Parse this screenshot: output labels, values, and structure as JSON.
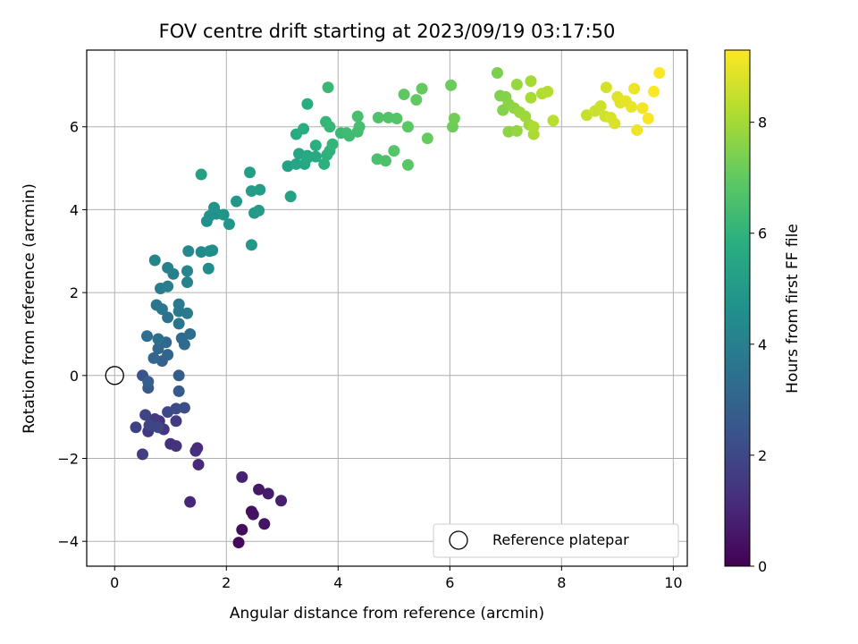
{
  "chart_data": {
    "type": "scatter",
    "title": "FOV centre drift starting at 2023/09/19 03:17:50",
    "xlabel": "Angular distance from reference (arcmin)",
    "ylabel": "Rotation from reference (arcmin)",
    "xlim": [
      -0.5,
      10.25
    ],
    "ylim": [
      -4.6,
      7.85
    ],
    "xticks": [
      0,
      2,
      4,
      6,
      8,
      10
    ],
    "yticks": [
      -4,
      -2,
      0,
      2,
      4,
      6
    ],
    "grid": true,
    "colorbar": {
      "label": "Hours from first FF file",
      "colormap": "viridis",
      "range": [
        0,
        9.3
      ],
      "ticks": [
        0,
        2,
        4,
        6,
        8
      ]
    },
    "legend": {
      "position": "lower-right",
      "entries": [
        "Reference platepar"
      ]
    },
    "reference_point": {
      "x": 0,
      "y": 0,
      "label": "Reference platepar"
    },
    "points": [
      [
        2.22,
        -4.03,
        0.2
      ],
      [
        2.28,
        -3.72,
        0.3
      ],
      [
        2.45,
        -3.28,
        0.4
      ],
      [
        2.48,
        -3.35,
        0.45
      ],
      [
        2.68,
        -3.58,
        0.5
      ],
      [
        2.58,
        -2.75,
        0.6
      ],
      [
        2.75,
        -2.85,
        0.7
      ],
      [
        2.98,
        -3.02,
        0.8
      ],
      [
        2.28,
        -2.45,
        0.9
      ],
      [
        1.35,
        -3.05,
        1.0
      ],
      [
        1.5,
        -2.15,
        1.1
      ],
      [
        1.48,
        -1.75,
        1.2
      ],
      [
        1.45,
        -1.82,
        1.25
      ],
      [
        1.0,
        -1.65,
        1.3
      ],
      [
        1.1,
        -1.7,
        1.35
      ],
      [
        0.8,
        -1.1,
        1.4
      ],
      [
        0.88,
        -1.3,
        1.45
      ],
      [
        0.72,
        -1.05,
        1.5
      ],
      [
        0.6,
        -1.35,
        1.55
      ],
      [
        1.1,
        -1.1,
        1.6
      ],
      [
        0.5,
        -1.9,
        1.7
      ],
      [
        0.38,
        -1.25,
        1.8
      ],
      [
        0.55,
        -0.95,
        1.85
      ],
      [
        0.62,
        -1.2,
        1.9
      ],
      [
        0.78,
        -1.25,
        1.95
      ],
      [
        0.95,
        -0.88,
        2.0
      ],
      [
        1.1,
        -0.8,
        2.1
      ],
      [
        1.25,
        -0.78,
        2.2
      ],
      [
        0.5,
        0.0,
        2.4
      ],
      [
        0.6,
        -0.3,
        2.5
      ],
      [
        1.15,
        -0.38,
        2.6
      ],
      [
        1.15,
        0.0,
        2.7
      ],
      [
        0.6,
        -0.15,
        2.8
      ],
      [
        0.85,
        0.35,
        2.9
      ],
      [
        0.95,
        0.5,
        3.0
      ],
      [
        0.7,
        0.42,
        3.05
      ],
      [
        0.78,
        0.65,
        3.1
      ],
      [
        0.92,
        0.8,
        3.15
      ],
      [
        1.25,
        0.75,
        3.2
      ],
      [
        1.2,
        0.9,
        3.25
      ],
      [
        1.35,
        1.0,
        3.3
      ],
      [
        0.58,
        0.95,
        3.35
      ],
      [
        0.78,
        0.88,
        3.4
      ],
      [
        0.95,
        1.4,
        3.5
      ],
      [
        1.15,
        1.25,
        3.55
      ],
      [
        0.85,
        1.6,
        3.6
      ],
      [
        0.75,
        1.7,
        3.65
      ],
      [
        1.15,
        1.55,
        3.7
      ],
      [
        1.15,
        1.72,
        3.75
      ],
      [
        1.3,
        1.5,
        3.8
      ],
      [
        0.82,
        2.1,
        3.9
      ],
      [
        0.95,
        2.15,
        3.95
      ],
      [
        1.05,
        2.45,
        4.0
      ],
      [
        0.95,
        2.6,
        4.05
      ],
      [
        1.3,
        2.25,
        4.1
      ],
      [
        1.3,
        2.52,
        4.15
      ],
      [
        0.72,
        2.78,
        4.2
      ],
      [
        1.32,
        3.0,
        4.3
      ],
      [
        1.55,
        2.98,
        4.4
      ],
      [
        1.68,
        2.58,
        4.45
      ],
      [
        1.7,
        3.0,
        4.5
      ],
      [
        1.75,
        3.02,
        4.55
      ],
      [
        1.65,
        3.72,
        4.6
      ],
      [
        1.7,
        3.85,
        4.65
      ],
      [
        1.82,
        3.9,
        4.7
      ],
      [
        1.78,
        4.05,
        4.75
      ],
      [
        1.95,
        3.88,
        4.8
      ],
      [
        2.05,
        3.65,
        4.85
      ],
      [
        2.18,
        4.2,
        4.9
      ],
      [
        2.45,
        3.15,
        4.95
      ],
      [
        2.5,
        3.92,
        5.0
      ],
      [
        2.58,
        3.98,
        5.05
      ],
      [
        2.45,
        4.45,
        5.1
      ],
      [
        2.6,
        4.48,
        5.15
      ],
      [
        2.42,
        4.9,
        5.2
      ],
      [
        1.55,
        4.85,
        5.25
      ],
      [
        3.15,
        4.32,
        5.3
      ],
      [
        3.1,
        5.05,
        5.35
      ],
      [
        3.25,
        5.1,
        5.4
      ],
      [
        3.3,
        5.35,
        5.45
      ],
      [
        3.45,
        5.3,
        5.5
      ],
      [
        3.4,
        5.1,
        5.55
      ],
      [
        3.6,
        5.28,
        5.6
      ],
      [
        3.45,
        5.25,
        5.65
      ],
      [
        3.25,
        5.82,
        5.7
      ],
      [
        3.38,
        5.95,
        5.75
      ],
      [
        3.45,
        6.55,
        5.8
      ],
      [
        3.6,
        5.55,
        5.85
      ],
      [
        3.75,
        5.1,
        5.9
      ],
      [
        3.8,
        5.32,
        5.95
      ],
      [
        3.85,
        5.42,
        6.0
      ],
      [
        3.9,
        5.58,
        6.05
      ],
      [
        3.78,
        6.12,
        6.1
      ],
      [
        3.85,
        6.0,
        6.15
      ],
      [
        3.82,
        6.95,
        6.2
      ],
      [
        4.05,
        5.85,
        6.25
      ],
      [
        4.15,
        5.85,
        6.3
      ],
      [
        4.2,
        5.78,
        6.35
      ],
      [
        4.35,
        5.88,
        6.4
      ],
      [
        4.38,
        6.0,
        6.45
      ],
      [
        4.35,
        6.25,
        6.5
      ],
      [
        4.7,
        5.22,
        6.55
      ],
      [
        4.85,
        5.18,
        6.6
      ],
      [
        4.72,
        6.22,
        6.65
      ],
      [
        4.9,
        6.22,
        6.7
      ],
      [
        5.05,
        6.2,
        6.75
      ],
      [
        5.0,
        5.42,
        6.8
      ],
      [
        5.25,
        5.08,
        6.85
      ],
      [
        5.25,
        6.0,
        6.9
      ],
      [
        5.18,
        6.78,
        6.95
      ],
      [
        5.4,
        6.65,
        7.0
      ],
      [
        5.5,
        6.92,
        7.05
      ],
      [
        5.6,
        5.72,
        7.1
      ],
      [
        6.02,
        7.0,
        7.15
      ],
      [
        6.05,
        6.0,
        7.2
      ],
      [
        6.08,
        6.2,
        7.25
      ],
      [
        6.85,
        7.3,
        7.4
      ],
      [
        6.9,
        6.75,
        7.45
      ],
      [
        6.95,
        6.4,
        7.5
      ],
      [
        7.0,
        6.72,
        7.55
      ],
      [
        7.05,
        6.55,
        7.6
      ],
      [
        7.05,
        5.88,
        7.65
      ],
      [
        7.15,
        6.45,
        7.7
      ],
      [
        7.2,
        5.9,
        7.75
      ],
      [
        7.2,
        7.02,
        7.8
      ],
      [
        7.25,
        6.35,
        7.85
      ],
      [
        7.35,
        6.25,
        7.9
      ],
      [
        7.42,
        6.05,
        7.95
      ],
      [
        7.45,
        7.1,
        8.0
      ],
      [
        7.45,
        6.7,
        8.05
      ],
      [
        7.5,
        5.82,
        8.1
      ],
      [
        7.5,
        6.0,
        8.15
      ],
      [
        7.65,
        6.8,
        8.2
      ],
      [
        7.75,
        6.85,
        8.25
      ],
      [
        7.85,
        6.15,
        8.3
      ],
      [
        8.45,
        6.28,
        8.5
      ],
      [
        8.6,
        6.38,
        8.55
      ],
      [
        8.7,
        6.5,
        8.6
      ],
      [
        8.78,
        6.25,
        8.65
      ],
      [
        8.8,
        6.95,
        8.7
      ],
      [
        8.88,
        6.22,
        8.75
      ],
      [
        8.95,
        6.08,
        8.8
      ],
      [
        9.0,
        6.72,
        8.85
      ],
      [
        9.05,
        6.58,
        8.9
      ],
      [
        9.15,
        6.62,
        8.95
      ],
      [
        9.25,
        6.48,
        9.0
      ],
      [
        9.3,
        6.92,
        9.05
      ],
      [
        9.35,
        5.92,
        9.1
      ],
      [
        9.45,
        6.45,
        9.15
      ],
      [
        9.55,
        6.2,
        9.2
      ],
      [
        9.65,
        6.85,
        9.25
      ],
      [
        9.75,
        7.3,
        9.3
      ]
    ]
  }
}
